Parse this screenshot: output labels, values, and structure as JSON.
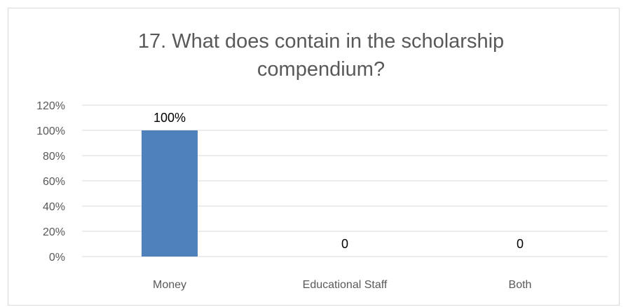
{
  "chart_data": {
    "type": "bar",
    "title_lines": [
      "17. What does contain in the scholarship",
      "compendium?"
    ],
    "categories": [
      "Money",
      "Educational Staff",
      "Both"
    ],
    "values": [
      1.0,
      0,
      0
    ],
    "data_labels": [
      "100%",
      "0",
      "0"
    ],
    "ylim": [
      0,
      1.2
    ],
    "yticks": [
      0,
      0.2,
      0.4,
      0.6,
      0.8,
      1.0,
      1.2
    ],
    "ytick_labels": [
      "0%",
      "20%",
      "40%",
      "60%",
      "80%",
      "100%",
      "120%"
    ],
    "xlabel": "",
    "ylabel": "",
    "grid": true,
    "legend": "none",
    "bar_color": "#4f81bd",
    "grid_color": "#d9d9d9"
  }
}
